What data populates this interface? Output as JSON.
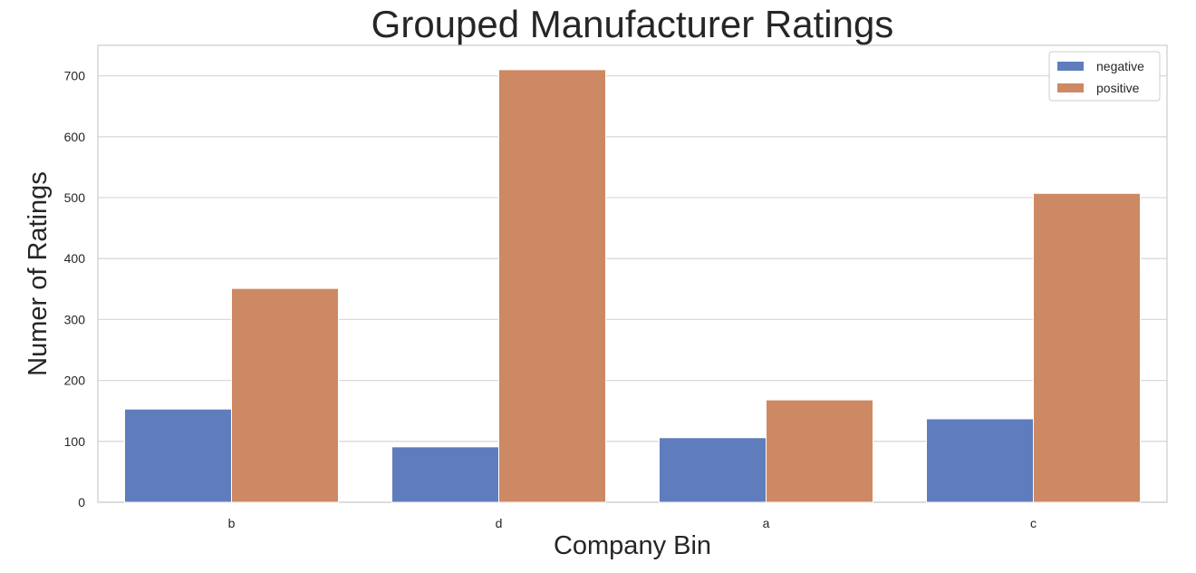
{
  "chart_data": {
    "type": "bar",
    "title": "Grouped Manufacturer Ratings",
    "xlabel": "Company Bin",
    "ylabel": "Numer of Ratings",
    "categories": [
      "b",
      "d",
      "a",
      "c"
    ],
    "series": [
      {
        "name": "negative",
        "values": [
          153,
          91,
          106,
          137
        ],
        "color": "#5f7dbd"
      },
      {
        "name": "positive",
        "values": [
          351,
          710,
          168,
          507
        ],
        "color": "#cc8963"
      }
    ],
    "ylim": [
      0,
      750
    ],
    "yticks": [
      0,
      100,
      200,
      300,
      400,
      500,
      600,
      700
    ],
    "grid": true,
    "legend_position": "top-right"
  }
}
